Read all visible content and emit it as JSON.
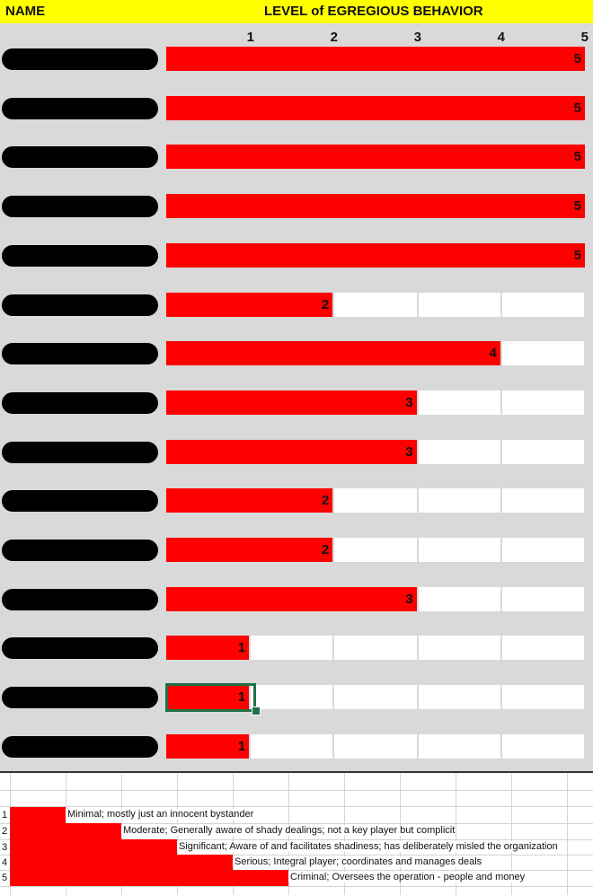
{
  "header": {
    "name_label": "NAME",
    "level_label": "LEVEL of EGREGIOUS BEHAVIOR"
  },
  "scale_ticks": [
    "1",
    "2",
    "3",
    "4",
    "5"
  ],
  "colors": {
    "header_bg": "#ffff00",
    "bar": "#ff0000",
    "row_band": "#d9d9d9",
    "selection": "#1e7145",
    "name_redaction": "#000000"
  },
  "rows": [
    {
      "value": 5
    },
    {
      "value": 5
    },
    {
      "value": 5
    },
    {
      "value": 5
    },
    {
      "value": 5
    },
    {
      "value": 2
    },
    {
      "value": 4
    },
    {
      "value": 3
    },
    {
      "value": 3
    },
    {
      "value": 2
    },
    {
      "value": 2
    },
    {
      "value": 3
    },
    {
      "value": 1
    },
    {
      "value": 1
    },
    {
      "value": 1
    }
  ],
  "selected_row": 14,
  "legend": [
    {
      "level": "1",
      "text": "Minimal; mostly just an innocent bystander"
    },
    {
      "level": "2",
      "text": "Moderate; Generally aware of shady dealings; not a key player but complicit"
    },
    {
      "level": "3",
      "text": "Significant; Aware of and facilitates shadiness; has deliberately misled the organization"
    },
    {
      "level": "4",
      "text": "Serious; Integral player; coordinates and manages deals"
    },
    {
      "level": "5",
      "text": "Criminal; Oversees the operation - people and money"
    }
  ]
}
